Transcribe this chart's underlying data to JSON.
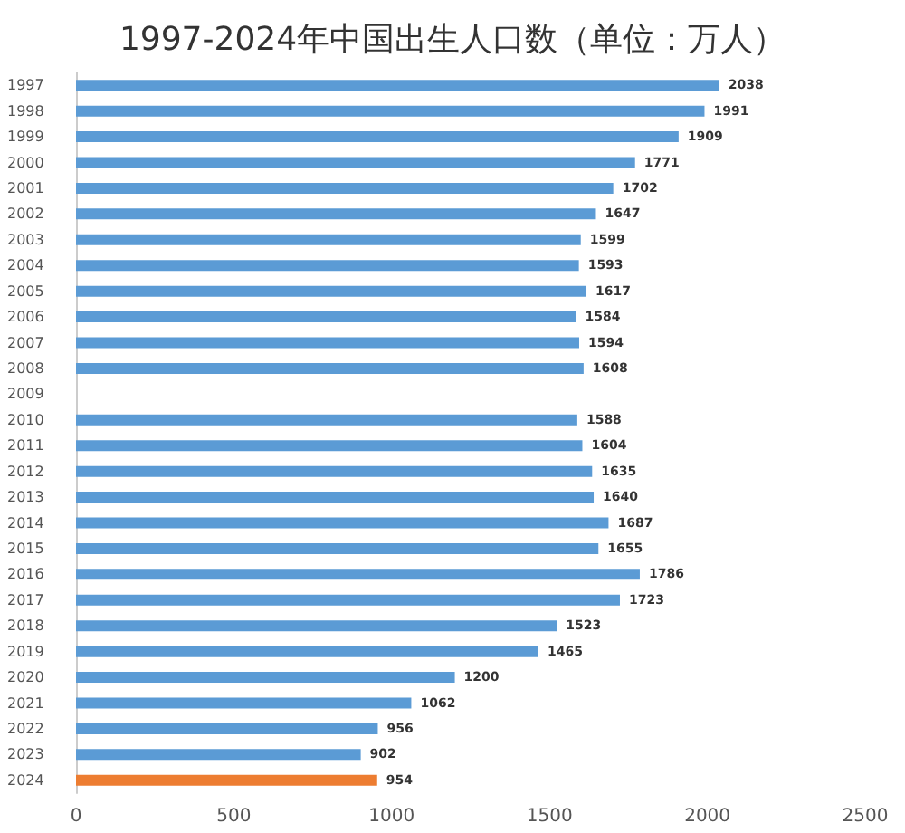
{
  "chart_data": {
    "type": "bar",
    "orientation": "horizontal",
    "title": "1997-2024年中国出生人口数（单位：万人）",
    "categories": [
      "1997",
      "1998",
      "1999",
      "2000",
      "2001",
      "2002",
      "2003",
      "2004",
      "2005",
      "2006",
      "2007",
      "2008",
      "2009",
      "2010",
      "2011",
      "2012",
      "2013",
      "2014",
      "2015",
      "2016",
      "2017",
      "2018",
      "2019",
      "2020",
      "2021",
      "2022",
      "2023",
      "2024"
    ],
    "values": [
      2038,
      1991,
      1909,
      1771,
      1702,
      1647,
      1599,
      1593,
      1617,
      1584,
      1594,
      1608,
      null,
      1588,
      1604,
      1635,
      1640,
      1687,
      1655,
      1786,
      1723,
      1523,
      1465,
      1200,
      1062,
      956,
      902,
      954
    ],
    "colors": [
      "#5b9bd5",
      "#5b9bd5",
      "#5b9bd5",
      "#5b9bd5",
      "#5b9bd5",
      "#5b9bd5",
      "#5b9bd5",
      "#5b9bd5",
      "#5b9bd5",
      "#5b9bd5",
      "#5b9bd5",
      "#5b9bd5",
      "#5b9bd5",
      "#5b9bd5",
      "#5b9bd5",
      "#5b9bd5",
      "#5b9bd5",
      "#5b9bd5",
      "#5b9bd5",
      "#5b9bd5",
      "#5b9bd5",
      "#5b9bd5",
      "#5b9bd5",
      "#5b9bd5",
      "#5b9bd5",
      "#5b9bd5",
      "#5b9bd5",
      "#ed7d31"
    ],
    "xlim": [
      0,
      2500
    ],
    "xticks": [
      0,
      500,
      1000,
      1500,
      2000,
      2500
    ],
    "data_labels": true
  }
}
